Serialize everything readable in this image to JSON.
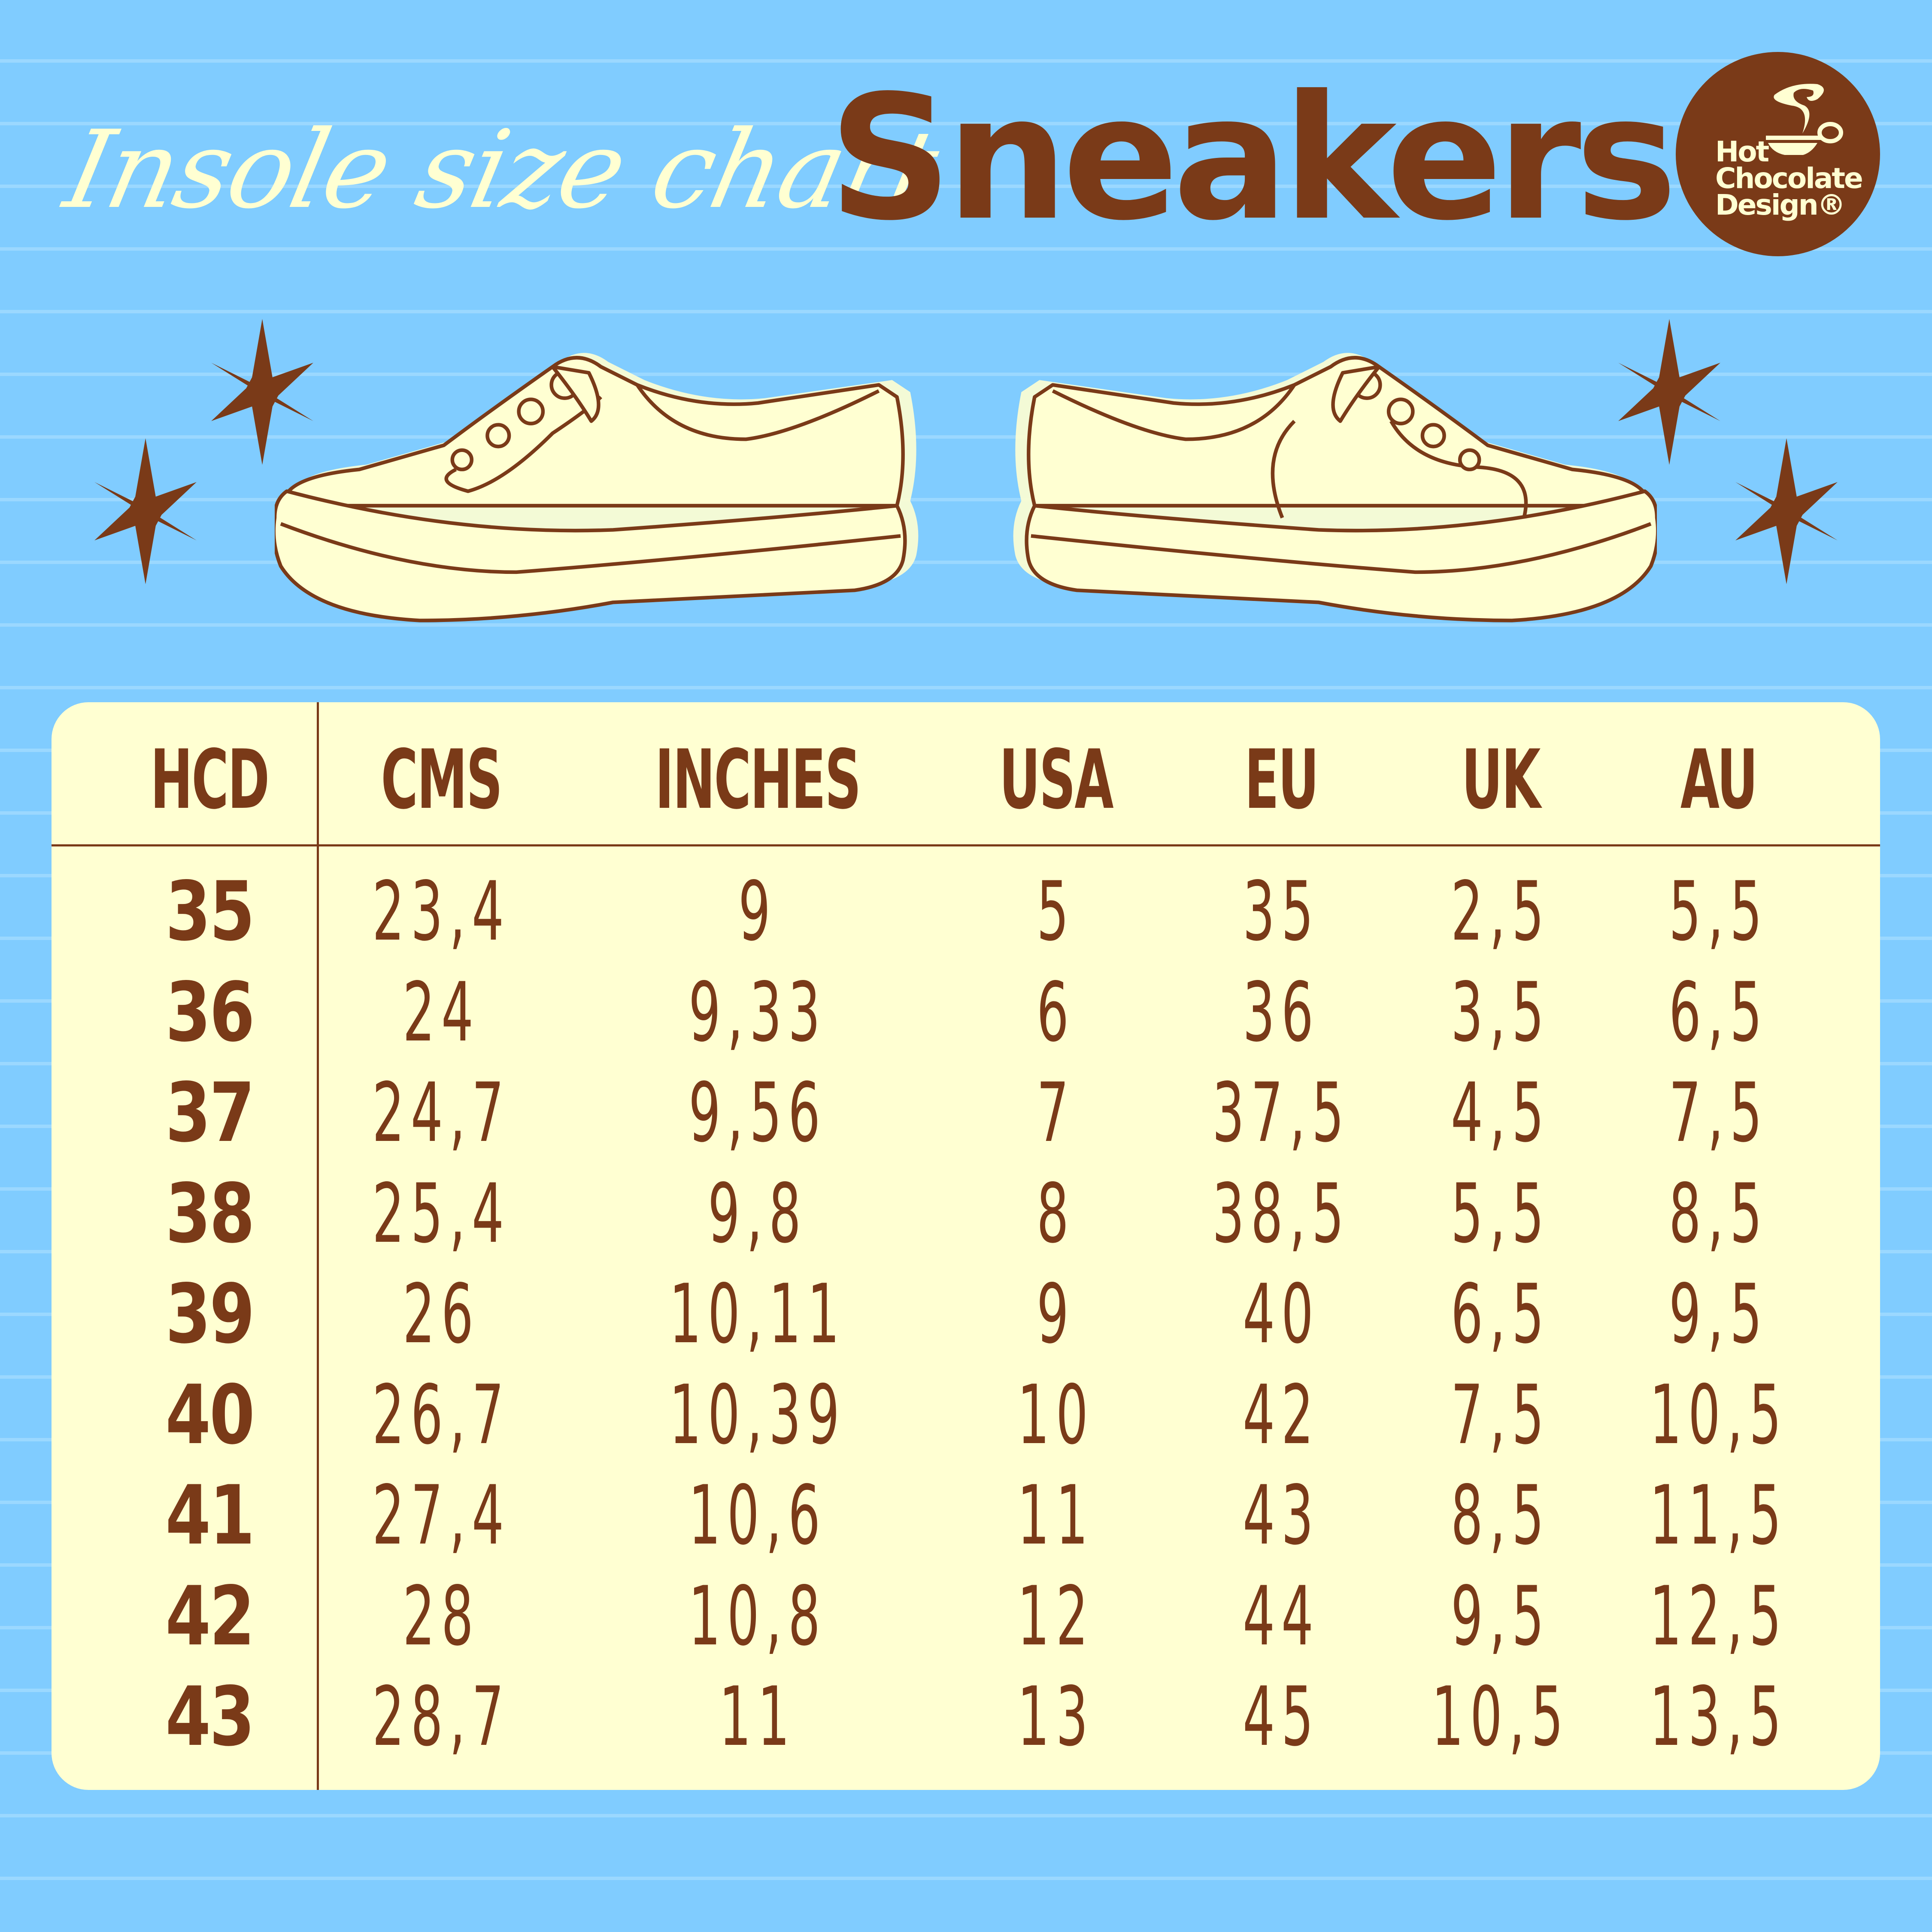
{
  "header": {
    "script_title": "Insole size chart",
    "main_title": "Sneakers",
    "logo": {
      "line1": "Hot",
      "line2": "Chocolate",
      "line3": "Design®"
    }
  },
  "colors": {
    "background": "#80ccff",
    "brown": "#7a3a18",
    "cream": "#ffffd2"
  },
  "icons": [
    "star-icon",
    "sneaker-left-icon",
    "sneaker-right-icon",
    "cup-logo-icon"
  ],
  "table": {
    "columns": [
      "HCD",
      "CMS",
      "INCHES",
      "USA",
      "EU",
      "UK",
      "AU"
    ],
    "rows": [
      [
        "35",
        "23,4",
        "9",
        "5",
        "35",
        "2,5",
        "5,5"
      ],
      [
        "36",
        "24",
        "9,33",
        "6",
        "36",
        "3,5",
        "6,5"
      ],
      [
        "37",
        "24,7",
        "9,56",
        "7",
        "37,5",
        "4,5",
        "7,5"
      ],
      [
        "38",
        "25,4",
        "9,8",
        "8",
        "38,5",
        "5,5",
        "8,5"
      ],
      [
        "39",
        "26",
        "10,11",
        "9",
        "40",
        "6,5",
        "9,5"
      ],
      [
        "40",
        "26,7",
        "10,39",
        "10",
        "42",
        "7,5",
        "10,5"
      ],
      [
        "41",
        "27,4",
        "10,6",
        "11",
        "43",
        "8,5",
        "11,5"
      ],
      [
        "42",
        "28",
        "10,8",
        "12",
        "44",
        "9,5",
        "12,5"
      ],
      [
        "43",
        "28,7",
        "11",
        "13",
        "45",
        "10,5",
        "13,5"
      ]
    ]
  }
}
